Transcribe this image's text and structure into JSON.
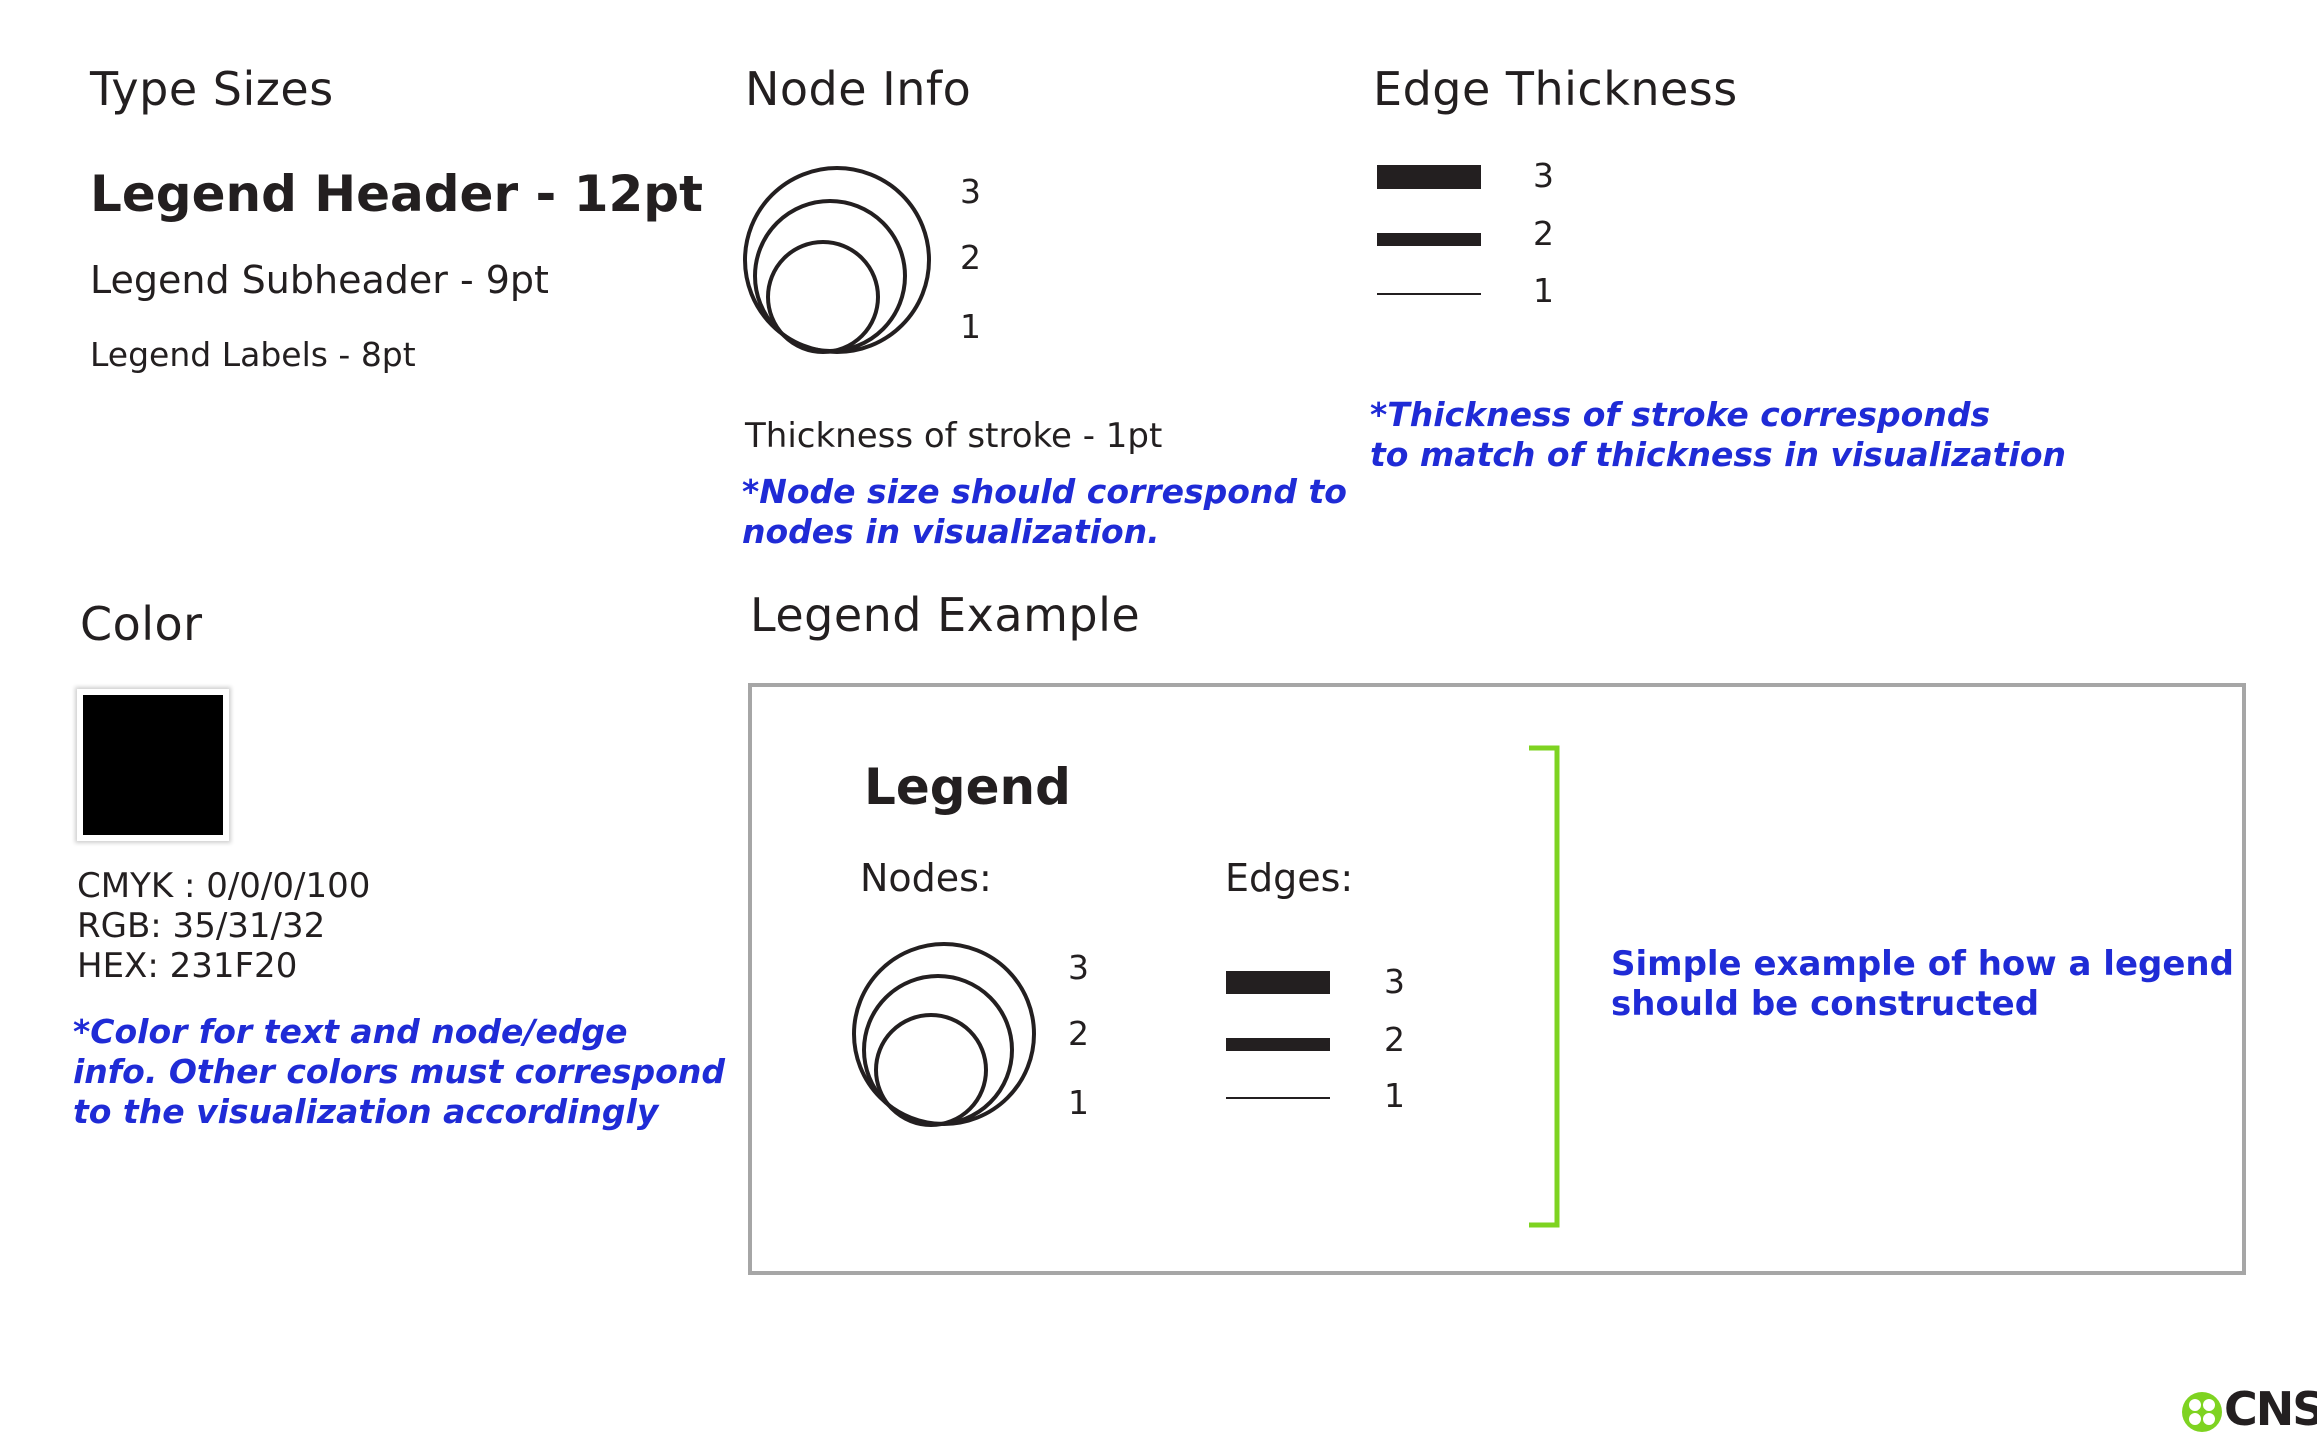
{
  "type_sizes": {
    "title": "Type Sizes",
    "header_sample": "Legend Header - 12pt",
    "subheader_sample": "Legend Subheader - 9pt",
    "labels_sample": "Legend Labels - 8pt"
  },
  "node_info": {
    "title": "Node Info",
    "labels": [
      "3",
      "2",
      "1"
    ],
    "stroke_text": "Thickness of stroke - 1pt",
    "note_lines": [
      "*Node size should correspond to",
      "nodes in visualization."
    ]
  },
  "edge_thickness": {
    "title": "Edge Thickness",
    "labels": [
      "3",
      "2",
      "1"
    ],
    "note_lines": [
      "*Thickness of stroke corresponds",
      "to match of thickness in visualization"
    ]
  },
  "color": {
    "title": "Color",
    "swatch_hex": "#231F20",
    "cmyk": "CMYK : 0/0/0/100",
    "rgb": "RGB: 35/31/32",
    "hex": "HEX: 231F20",
    "note_lines": [
      "*Color for text and node/edge",
      "info. Other colors must correspond",
      "to the visualization accordingly"
    ]
  },
  "legend_example": {
    "title": "Legend Example",
    "legend_title": "Legend",
    "nodes_label": "Nodes:",
    "edges_label": "Edges:",
    "node_labels": [
      "3",
      "2",
      "1"
    ],
    "edge_labels": [
      "3",
      "2",
      "1"
    ],
    "description_lines": [
      "Simple example of how a legend",
      "should be constructed"
    ],
    "bracket_color": "#7ed321"
  },
  "logo": {
    "text": "CNS",
    "color": "#7ed321"
  },
  "colors": {
    "text": "#231F20",
    "note": "#1f2bd6",
    "border": "#a6a6a6"
  }
}
